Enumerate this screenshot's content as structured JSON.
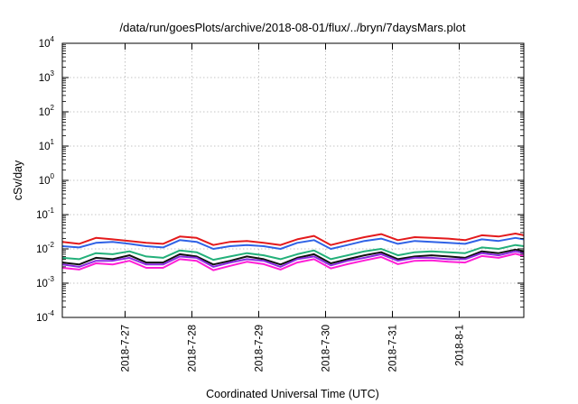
{
  "chart_data": {
    "type": "line",
    "title": "/data/run/goesPlots/archive/2018-08-01/flux/../bryn/7daysMars.plot",
    "xlabel": "Coordinated Universal Time (UTC)",
    "ylabel": "cSv/day",
    "yscale": "log",
    "ylim": [
      0.0001,
      10000
    ],
    "xlim": [
      "2018-07-26 02:00",
      "2018-08-01 23:00"
    ],
    "grid": true,
    "legend": "none",
    "x_tick_labels": [
      "2018-7-27",
      "2018-7-28",
      "2018-7-29",
      "2018-7-30",
      "2018-7-31",
      "2018-8-1"
    ],
    "y_ticks": [
      {
        "base": "10",
        "exp": "-4"
      },
      {
        "base": "10",
        "exp": "-3"
      },
      {
        "base": "10",
        "exp": "-2"
      },
      {
        "base": "10",
        "exp": "-1"
      },
      {
        "base": "10",
        "exp": "0"
      },
      {
        "base": "10",
        "exp": "1"
      },
      {
        "base": "10",
        "exp": "2"
      },
      {
        "base": "10",
        "exp": "3"
      },
      {
        "base": "10",
        "exp": "4"
      }
    ],
    "x_days": [
      0.0,
      0.25,
      0.5,
      0.75,
      1.0,
      1.25,
      1.5,
      1.75,
      2.0,
      2.25,
      2.5,
      2.75,
      3.0,
      3.25,
      3.5,
      3.75,
      4.0,
      4.25,
      4.5,
      4.75,
      5.0,
      5.25,
      5.5,
      5.75,
      6.0,
      6.25,
      6.5,
      6.75,
      6.875
    ],
    "x_days_origin": "2018-07-26 02:00",
    "series": [
      {
        "color": "#e31a1c",
        "values": [
          0.016,
          0.014,
          0.021,
          0.019,
          0.017,
          0.015,
          0.014,
          0.023,
          0.021,
          0.013,
          0.016,
          0.017,
          0.015,
          0.013,
          0.019,
          0.024,
          0.013,
          0.017,
          0.022,
          0.027,
          0.018,
          0.022,
          0.021,
          0.02,
          0.018,
          0.025,
          0.023,
          0.028,
          0.025
        ]
      },
      {
        "color": "#2f62e6",
        "values": [
          0.012,
          0.011,
          0.015,
          0.016,
          0.014,
          0.012,
          0.011,
          0.018,
          0.016,
          0.01,
          0.012,
          0.013,
          0.012,
          0.01,
          0.015,
          0.018,
          0.01,
          0.013,
          0.017,
          0.02,
          0.014,
          0.017,
          0.016,
          0.015,
          0.014,
          0.019,
          0.017,
          0.021,
          0.019
        ]
      },
      {
        "color": "#23b07a",
        "values": [
          0.0055,
          0.005,
          0.0075,
          0.007,
          0.0085,
          0.006,
          0.0055,
          0.009,
          0.008,
          0.0048,
          0.006,
          0.0075,
          0.0065,
          0.005,
          0.007,
          0.009,
          0.005,
          0.0065,
          0.0085,
          0.01,
          0.0065,
          0.008,
          0.0085,
          0.008,
          0.0075,
          0.011,
          0.01,
          0.013,
          0.012
        ]
      },
      {
        "color": "#111111",
        "values": [
          0.004,
          0.0035,
          0.0055,
          0.005,
          0.0065,
          0.004,
          0.004,
          0.007,
          0.006,
          0.0035,
          0.0045,
          0.006,
          0.005,
          0.0035,
          0.0055,
          0.007,
          0.0038,
          0.005,
          0.0065,
          0.008,
          0.005,
          0.006,
          0.0065,
          0.006,
          0.0055,
          0.0085,
          0.0075,
          0.0095,
          0.0085
        ]
      },
      {
        "color": "#8a2be2",
        "values": [
          0.0035,
          0.003,
          0.0045,
          0.0045,
          0.0055,
          0.0035,
          0.0035,
          0.006,
          0.0055,
          0.003,
          0.004,
          0.005,
          0.0045,
          0.003,
          0.005,
          0.006,
          0.0033,
          0.0045,
          0.0055,
          0.007,
          0.0045,
          0.0055,
          0.0055,
          0.005,
          0.005,
          0.0075,
          0.0065,
          0.0085,
          0.0075
        ]
      },
      {
        "color": "#ff1fd6",
        "values": [
          0.0028,
          0.0025,
          0.0038,
          0.0035,
          0.0045,
          0.0028,
          0.0028,
          0.005,
          0.0045,
          0.0024,
          0.0032,
          0.0042,
          0.0036,
          0.0025,
          0.004,
          0.005,
          0.0027,
          0.0036,
          0.0046,
          0.0058,
          0.0036,
          0.0045,
          0.0046,
          0.0042,
          0.004,
          0.0062,
          0.0055,
          0.0072,
          0.0062
        ]
      }
    ]
  }
}
